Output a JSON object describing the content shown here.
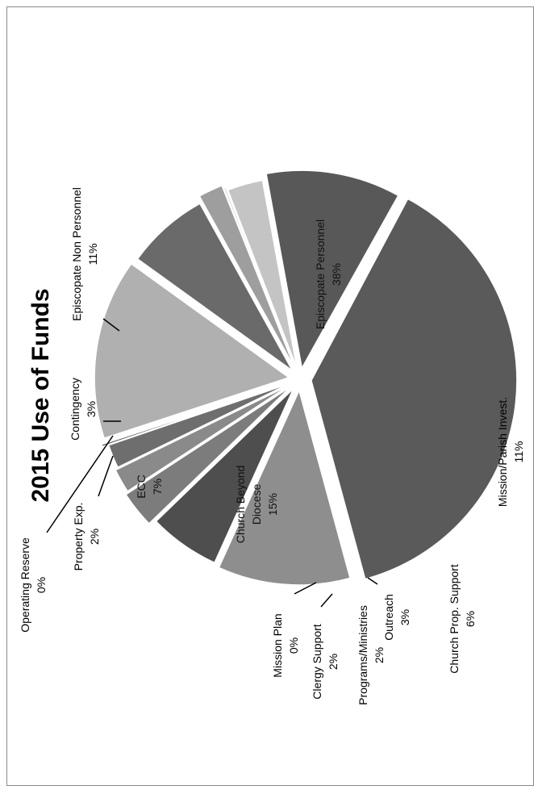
{
  "chart_data": {
    "type": "pie",
    "title": "2015 Use of Funds",
    "unit": "%",
    "slices": [
      {
        "label": "Episcopate Personnel",
        "value": 38,
        "value_label": "38%",
        "color": "#5a5a5a",
        "exploded": true
      },
      {
        "label": "Mission/Parish Invest.",
        "value": 11,
        "value_label": "11%",
        "color": "#8e8e8e",
        "exploded": true
      },
      {
        "label": "Church Prop. Support",
        "value": 6,
        "value_label": "6%",
        "color": "#4e4e4e",
        "exploded": true
      },
      {
        "label": "Outreach",
        "value": 3,
        "value_label": "3%",
        "color": "#7c7c7c",
        "exploded": true
      },
      {
        "label": "Programs/Ministries",
        "value": 2,
        "value_label": "2%",
        "color": "#8a8a8a",
        "exploded": true
      },
      {
        "label": "Clergy Support",
        "value": 2,
        "value_label": "2%",
        "color": "#6e6e6e",
        "exploded": true
      },
      {
        "label": "Mission Plan",
        "value": 0,
        "value_label": "0%",
        "color": "#3e3e3e",
        "exploded": true
      },
      {
        "label": "Church Beyond Diocese",
        "value": 15,
        "value_label": "15%",
        "color": "#b0b0b0",
        "exploded": true
      },
      {
        "label": "ECC",
        "value": 7,
        "value_label": "7%",
        "color": "#6a6a6a",
        "exploded": true
      },
      {
        "label": "Property Exp.",
        "value": 2,
        "value_label": "2%",
        "color": "#9e9e9e",
        "exploded": true
      },
      {
        "label": "Operating Reserve",
        "value": 0,
        "value_label": "0%",
        "color": "#d6d6d6",
        "exploded": true
      },
      {
        "label": "Contingency",
        "value": 3,
        "value_label": "3%",
        "color": "#c4c4c4",
        "exploded": true
      },
      {
        "label": "Episcopate Non Personnel",
        "value": 11,
        "value_label": "11%",
        "color": "#585858",
        "exploded": true
      }
    ]
  }
}
